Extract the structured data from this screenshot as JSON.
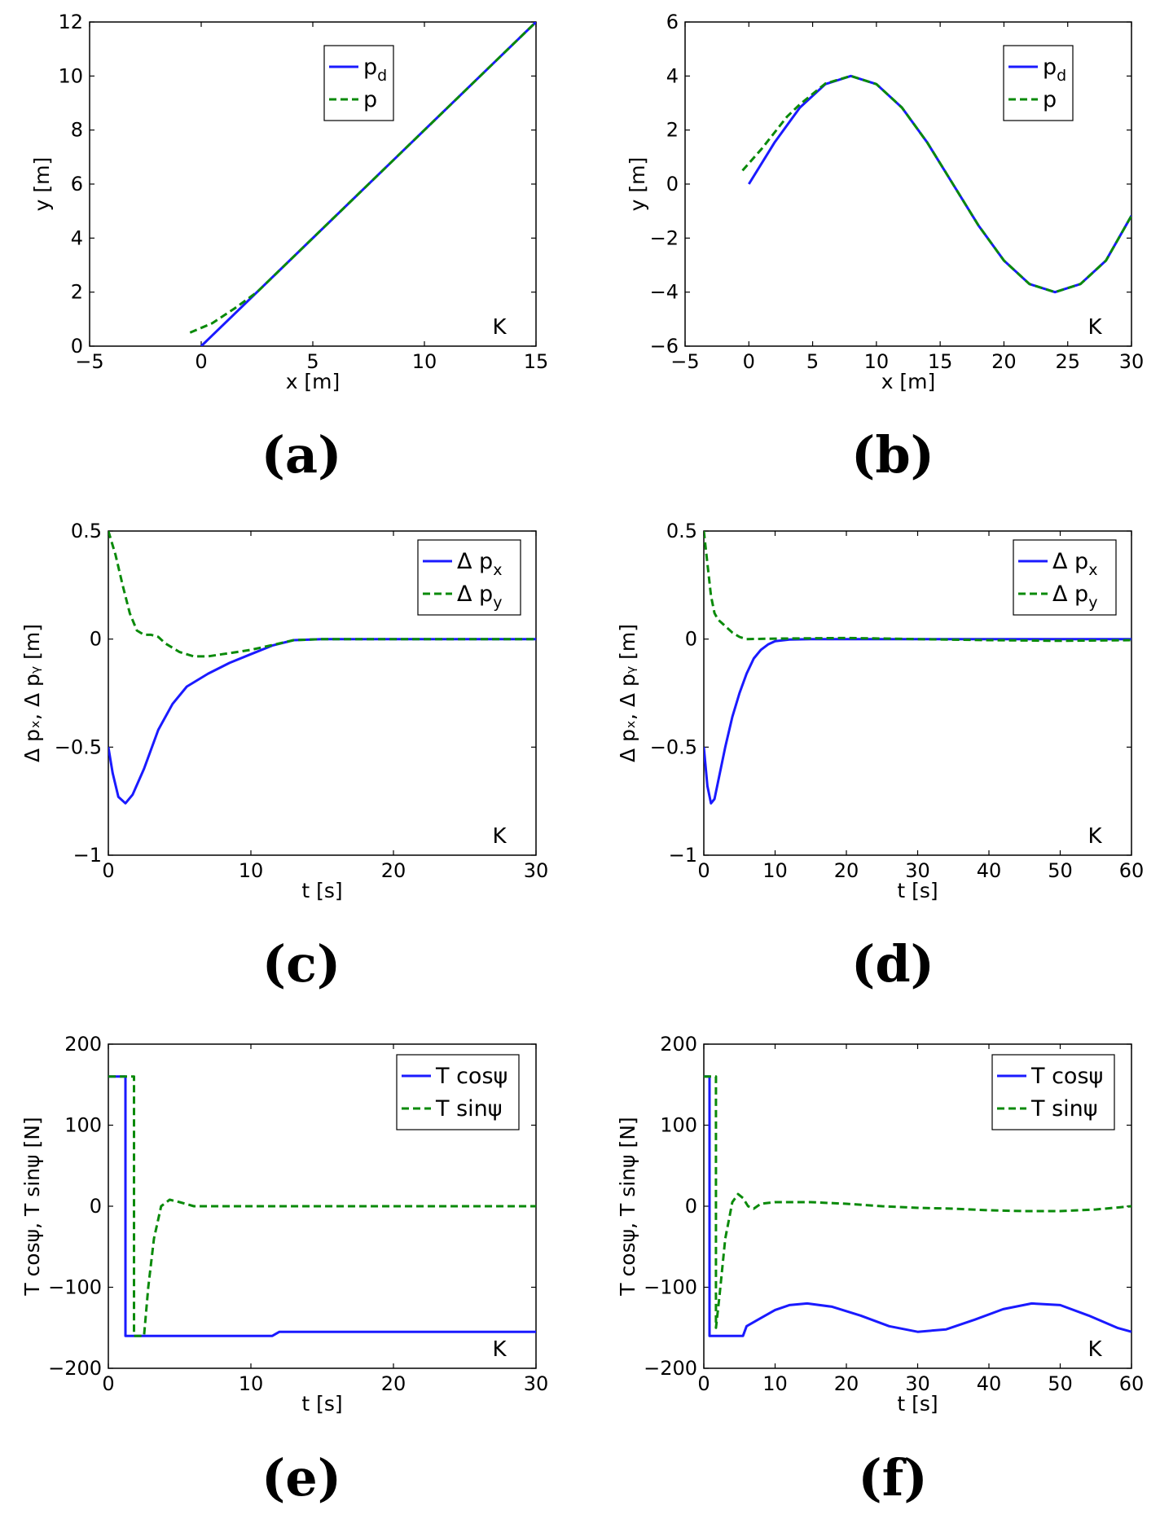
{
  "colors": {
    "desired": "#1a1aff",
    "actual": "#0a8a0a",
    "axis": "#000000"
  },
  "chart_data": [
    {
      "id": "a",
      "panel_label": "(a)",
      "type": "line",
      "xlabel": "x [m]",
      "ylabel": "y [m]",
      "xlim": [
        -5,
        15
      ],
      "ylim": [
        0,
        12
      ],
      "xticks": [
        -5,
        0,
        5,
        10,
        15
      ],
      "yticks": [
        0,
        2,
        4,
        6,
        8,
        10,
        12
      ],
      "xtick_labels": [
        "−5",
        "0",
        "5",
        "10",
        "15"
      ],
      "ytick_labels": [
        "0",
        "2",
        "4",
        "6",
        "8",
        "10",
        "12"
      ],
      "legend": {
        "position": "top-center",
        "entries": [
          {
            "base": "p",
            "sub": "d"
          },
          {
            "base": "p",
            "sub": ""
          }
        ]
      },
      "corner_text": "K",
      "series": [
        {
          "name": "p_d",
          "style": "solid",
          "color": "#1a1aff",
          "x": [
            0,
            15
          ],
          "y": [
            0,
            12
          ]
        },
        {
          "name": "p",
          "style": "dashed",
          "color": "#0a8a0a",
          "x": [
            -0.5,
            0.5,
            1.5,
            2.5,
            3.5,
            5,
            10,
            15
          ],
          "y": [
            0.5,
            0.85,
            1.4,
            2.0,
            2.8,
            4.0,
            8.0,
            12
          ]
        }
      ]
    },
    {
      "id": "b",
      "panel_label": "(b)",
      "type": "line",
      "xlabel": "x [m]",
      "ylabel": "y [m]",
      "xlim": [
        -5,
        30
      ],
      "ylim": [
        -6,
        6
      ],
      "xticks": [
        -5,
        0,
        5,
        10,
        15,
        20,
        25,
        30
      ],
      "yticks": [
        -6,
        -4,
        -2,
        0,
        2,
        4,
        6
      ],
      "xtick_labels": [
        "−5",
        "0",
        "5",
        "10",
        "15",
        "20",
        "25",
        "30"
      ],
      "ytick_labels": [
        "−6",
        "−4",
        "−2",
        "0",
        "2",
        "4",
        "6"
      ],
      "legend": {
        "position": "top-right",
        "entries": [
          {
            "base": "p",
            "sub": "d"
          },
          {
            "base": "p",
            "sub": ""
          }
        ]
      },
      "corner_text": "K",
      "series": [
        {
          "name": "p_d",
          "style": "solid",
          "color": "#1a1aff",
          "x": [
            0,
            2,
            4,
            6,
            8,
            10,
            12,
            14,
            16,
            18,
            20,
            22,
            24,
            26,
            28,
            30
          ],
          "y": [
            0,
            1.53,
            2.83,
            3.7,
            4.0,
            3.7,
            2.83,
            1.53,
            0,
            -1.53,
            -2.83,
            -3.7,
            -4.0,
            -3.7,
            -2.83,
            -1.17
          ]
        },
        {
          "name": "p",
          "style": "dashed",
          "color": "#0a8a0a",
          "x": [
            -0.5,
            1,
            2,
            3,
            4,
            6,
            8,
            10,
            12,
            14,
            16,
            18,
            20,
            22,
            24,
            26,
            28,
            30
          ],
          "y": [
            0.5,
            1.3,
            1.9,
            2.5,
            2.95,
            3.72,
            4.0,
            3.7,
            2.83,
            1.53,
            0,
            -1.53,
            -2.83,
            -3.7,
            -4.0,
            -3.7,
            -2.83,
            -1.17
          ]
        }
      ]
    },
    {
      "id": "c",
      "panel_label": "(c)",
      "type": "line",
      "xlabel": "t [s]",
      "ylabel": "Δ pₓ, Δ pᵧ [m]",
      "xlim": [
        0,
        30
      ],
      "ylim": [
        -1,
        0.5
      ],
      "xticks": [
        0,
        10,
        20,
        30
      ],
      "yticks": [
        -1,
        -0.5,
        0,
        0.5
      ],
      "xtick_labels": [
        "0",
        "10",
        "20",
        "30"
      ],
      "ytick_labels": [
        "−1",
        "−0.5",
        "0",
        "0.5"
      ],
      "legend": {
        "position": "top-right",
        "entries": [
          {
            "base": "Δ p",
            "sub": "x"
          },
          {
            "base": "Δ p",
            "sub": "y"
          }
        ]
      },
      "corner_text": "K",
      "series": [
        {
          "name": "Δ p_x",
          "style": "solid",
          "color": "#1a1aff",
          "x": [
            0,
            0.3,
            0.7,
            1.2,
            1.7,
            2.5,
            3.5,
            4.5,
            5.5,
            7,
            8.5,
            10,
            11.5,
            13,
            15,
            20,
            30
          ],
          "y": [
            -0.5,
            -0.62,
            -0.73,
            -0.76,
            -0.72,
            -0.6,
            -0.42,
            -0.3,
            -0.22,
            -0.16,
            -0.11,
            -0.07,
            -0.03,
            -0.005,
            0,
            0,
            0
          ]
        },
        {
          "name": "Δ p_y",
          "style": "dashed",
          "color": "#0a8a0a",
          "x": [
            0,
            0.5,
            1,
            1.5,
            2,
            2.5,
            3,
            3.5,
            4,
            5,
            6,
            7,
            8,
            9,
            10,
            11,
            12,
            13,
            15,
            20,
            30
          ],
          "y": [
            0.5,
            0.39,
            0.25,
            0.12,
            0.04,
            0.02,
            0.02,
            0.01,
            -0.02,
            -0.06,
            -0.08,
            -0.08,
            -0.07,
            -0.06,
            -0.05,
            -0.035,
            -0.02,
            -0.005,
            0,
            0,
            0
          ]
        }
      ]
    },
    {
      "id": "d",
      "panel_label": "(d)",
      "type": "line",
      "xlabel": "t [s]",
      "ylabel": "Δ pₓ, Δ pᵧ [m]",
      "xlim": [
        0,
        60
      ],
      "ylim": [
        -1,
        0.5
      ],
      "xticks": [
        0,
        10,
        20,
        30,
        40,
        50,
        60
      ],
      "yticks": [
        -1,
        -0.5,
        0,
        0.5
      ],
      "xtick_labels": [
        "0",
        "10",
        "20",
        "30",
        "40",
        "50",
        "60"
      ],
      "ytick_labels": [
        "−1",
        "−0.5",
        "0",
        "0.5"
      ],
      "legend": {
        "position": "top-right",
        "entries": [
          {
            "base": "Δ p",
            "sub": "x"
          },
          {
            "base": "Δ p",
            "sub": "y"
          }
        ]
      },
      "corner_text": "K",
      "series": [
        {
          "name": "Δ p_x",
          "style": "solid",
          "color": "#1a1aff",
          "x": [
            0,
            0.5,
            1,
            1.5,
            2,
            3,
            4,
            5,
            6,
            7,
            8,
            9,
            10,
            12,
            15,
            20,
            30,
            40,
            50,
            60
          ],
          "y": [
            -0.5,
            -0.68,
            -0.76,
            -0.74,
            -0.66,
            -0.5,
            -0.36,
            -0.25,
            -0.16,
            -0.09,
            -0.05,
            -0.025,
            -0.01,
            -0.002,
            0,
            0,
            0,
            0,
            0,
            0
          ]
        },
        {
          "name": "Δ p_y",
          "style": "dashed",
          "color": "#0a8a0a",
          "x": [
            0,
            0.5,
            1,
            1.5,
            2,
            3,
            4,
            5,
            6,
            10,
            20,
            30,
            40,
            50,
            60
          ],
          "y": [
            0.5,
            0.35,
            0.2,
            0.12,
            0.09,
            0.06,
            0.03,
            0.01,
            0,
            0.002,
            0.005,
            0,
            -0.005,
            -0.008,
            -0.005
          ]
        }
      ]
    },
    {
      "id": "e",
      "panel_label": "(e)",
      "type": "line",
      "xlabel": "t [s]",
      "ylabel": "T cosψ, T sinψ [N]",
      "xlim": [
        0,
        30
      ],
      "ylim": [
        -200,
        200
      ],
      "xticks": [
        0,
        10,
        20,
        30
      ],
      "yticks": [
        -200,
        -100,
        0,
        100,
        200
      ],
      "xtick_labels": [
        "0",
        "10",
        "20",
        "30"
      ],
      "ytick_labels": [
        "−200",
        "−100",
        "0",
        "100",
        "200"
      ],
      "legend": {
        "position": "top-right",
        "entries": [
          {
            "base": "T cosψ",
            "sub": ""
          },
          {
            "base": "T sinψ",
            "sub": ""
          }
        ]
      },
      "corner_text": "K",
      "series": [
        {
          "name": "T cosψ",
          "style": "solid",
          "color": "#1a1aff",
          "x": [
            0,
            1.2,
            1.2,
            11.5,
            12,
            30
          ],
          "y": [
            160,
            160,
            -160,
            -160,
            -155,
            -155
          ]
        },
        {
          "name": "T sinψ",
          "style": "dashed",
          "color": "#0a8a0a",
          "x": [
            0,
            1.8,
            1.8,
            2.5,
            2.8,
            3.2,
            3.7,
            4.3,
            5,
            6,
            7,
            30
          ],
          "y": [
            160,
            160,
            -160,
            -160,
            -100,
            -40,
            0,
            8,
            5,
            0,
            0,
            0
          ]
        }
      ]
    },
    {
      "id": "f",
      "panel_label": "(f)",
      "type": "line",
      "xlabel": "t [s]",
      "ylabel": "T cosψ, T sinψ [N]",
      "xlim": [
        0,
        60
      ],
      "ylim": [
        -200,
        200
      ],
      "xticks": [
        0,
        10,
        20,
        30,
        40,
        50,
        60
      ],
      "yticks": [
        -200,
        -100,
        0,
        100,
        200
      ],
      "xtick_labels": [
        "0",
        "10",
        "20",
        "30",
        "40",
        "50",
        "60"
      ],
      "ytick_labels": [
        "−200",
        "−100",
        "0",
        "100",
        "200"
      ],
      "legend": {
        "position": "top-right",
        "entries": [
          {
            "base": "T cosψ",
            "sub": ""
          },
          {
            "base": "T sinψ",
            "sub": ""
          }
        ]
      },
      "corner_text": "K",
      "series": [
        {
          "name": "T cosψ",
          "style": "solid",
          "color": "#1a1aff",
          "x": [
            0,
            0.8,
            0.8,
            5.5,
            6,
            8,
            10,
            12,
            14.5,
            18,
            22,
            26,
            30,
            34,
            38,
            42,
            46,
            50,
            54,
            58,
            60
          ],
          "y": [
            160,
            160,
            -160,
            -160,
            -148,
            -138,
            -128,
            -122,
            -120,
            -124,
            -135,
            -148,
            -155,
            -152,
            -140,
            -127,
            -120,
            -122,
            -135,
            -150,
            -155
          ]
        },
        {
          "name": "T sinψ",
          "style": "dashed",
          "color": "#0a8a0a",
          "x": [
            0,
            1.7,
            1.7,
            2.2,
            3,
            4,
            4.8,
            5.5,
            6.2,
            7,
            8,
            10,
            15,
            20,
            25,
            30,
            35,
            40,
            45,
            50,
            55,
            60
          ],
          "y": [
            160,
            160,
            -150,
            -110,
            -40,
            5,
            15,
            10,
            0,
            -3,
            3,
            5,
            5,
            3,
            0,
            -2,
            -3,
            -5,
            -6,
            -6,
            -4,
            0
          ]
        }
      ]
    }
  ]
}
